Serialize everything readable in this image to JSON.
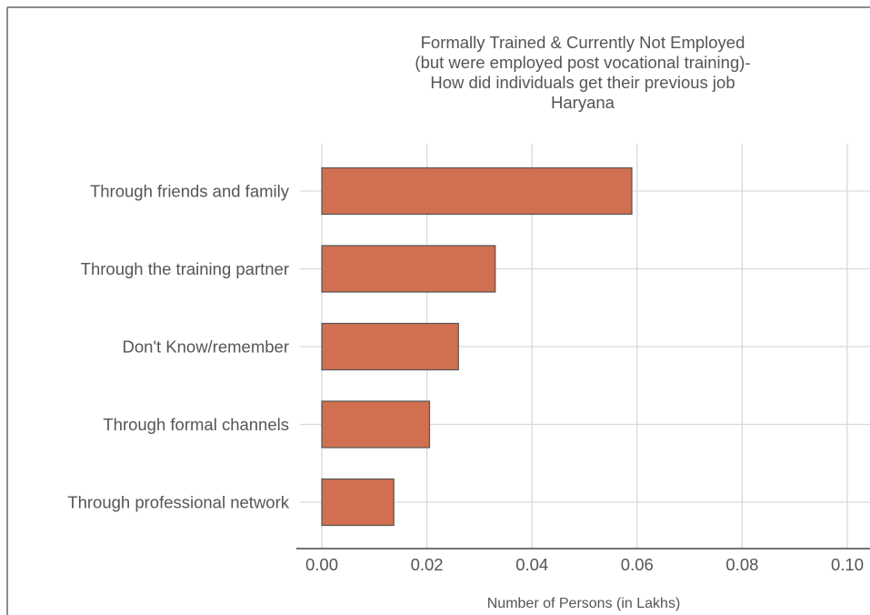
{
  "chart_data": {
    "type": "bar",
    "orientation": "horizontal",
    "title_lines": [
      "Formally Trained & Currently Not Employed",
      "(but were employed post vocational training)-",
      "How did individuals get their previous job",
      "Haryana"
    ],
    "categories": [
      "Through friends and family",
      "Through the training partner",
      "Don't Know/remember",
      "Through formal channels",
      "Through professional network"
    ],
    "values": [
      0.059,
      0.033,
      0.026,
      0.0205,
      0.0137
    ],
    "xlabel": "Number of Persons (in Lakhs)",
    "ylabel": "",
    "xlim": [
      0,
      0.1
    ],
    "xticks": [
      "0.00",
      "0.02",
      "0.04",
      "0.06",
      "0.08",
      "0.10"
    ],
    "grid": true,
    "legend": "none",
    "bar_color": "#d07050",
    "bar_edge_color": "#555555",
    "grid_color": "#d9d9d9"
  }
}
